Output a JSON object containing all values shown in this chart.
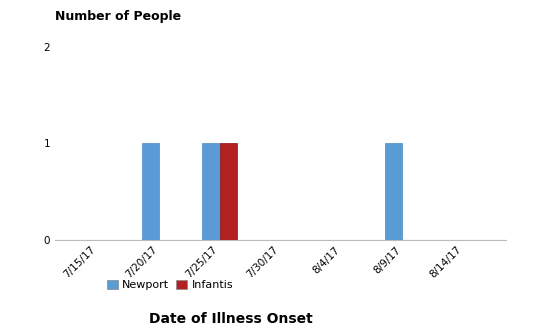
{
  "title_ylabel": "Number of People",
  "xlabel": "Date of Illness Onset",
  "x_tick_labels": [
    "7/15/17",
    "7/20/17",
    "7/25/17",
    "7/30/17",
    "8/4/17",
    "8/9/17",
    "8/14/17"
  ],
  "x_positions": [
    0,
    1,
    2,
    3,
    4,
    5,
    6
  ],
  "newport_dates_idx": [
    1,
    2,
    5
  ],
  "infantis_dates_idx": [
    2
  ],
  "newport_values": [
    1,
    1,
    1
  ],
  "infantis_values": [
    1
  ],
  "newport_color": "#5B9BD5",
  "infantis_color": "#B22222",
  "ylim": [
    0,
    2
  ],
  "yticks": [
    0,
    1,
    2
  ],
  "bar_width": 0.28,
  "legend_newport": "Newport",
  "legend_infantis": "Infantis",
  "title_fontsize": 9,
  "xlabel_fontsize": 10,
  "tick_label_fontsize": 7.5,
  "legend_fontsize": 8,
  "background_color": "#ffffff",
  "axis_color": "#bbbbbb",
  "title_fontweight": "bold"
}
